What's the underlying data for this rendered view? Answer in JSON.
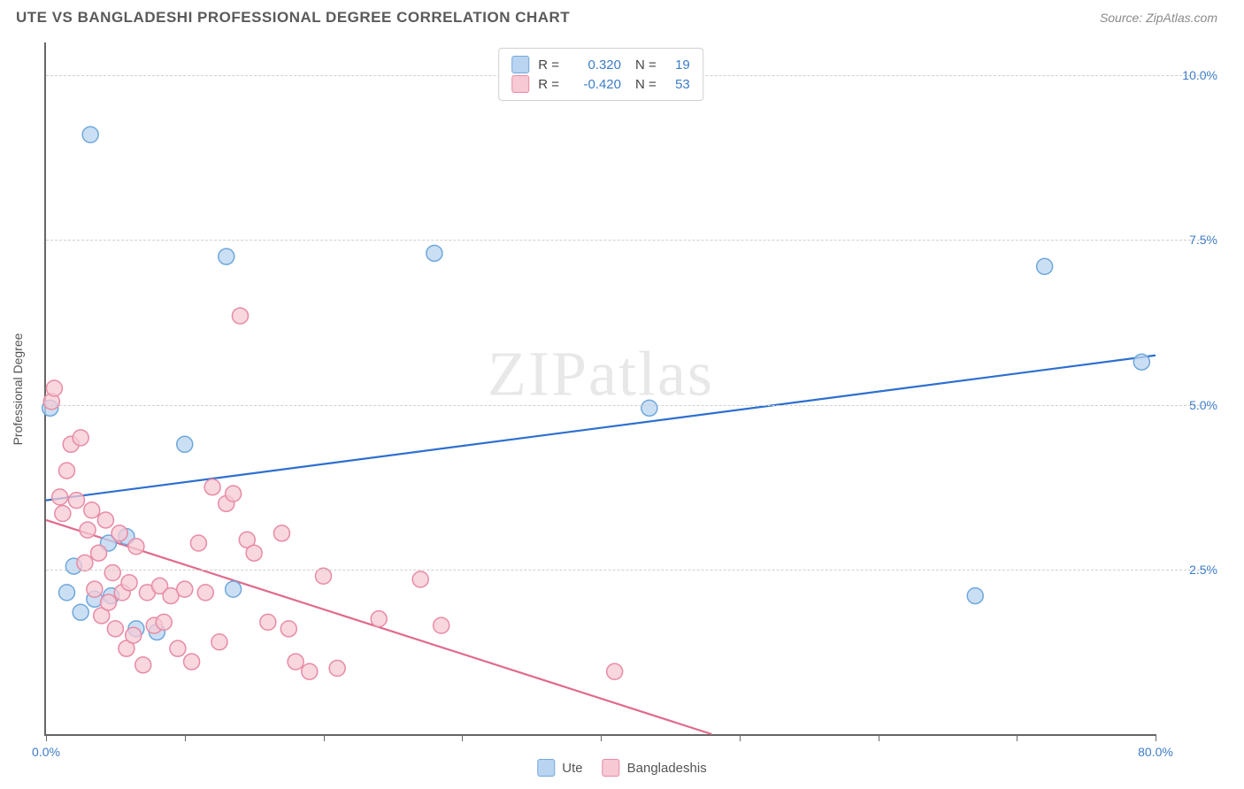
{
  "title": "UTE VS BANGLADESHI PROFESSIONAL DEGREE CORRELATION CHART",
  "source": "Source: ZipAtlas.com",
  "ylabel": "Professional Degree",
  "watermark_a": "ZIP",
  "watermark_b": "atlas",
  "chart": {
    "type": "scatter",
    "xlim": [
      0,
      80
    ],
    "ylim": [
      0,
      10.5
    ],
    "x_ticks": [
      0,
      10,
      20,
      30,
      40,
      50,
      60,
      70,
      80
    ],
    "x_tick_labels_shown": {
      "0": "0.0%",
      "80": "80.0%"
    },
    "y_ticks": [
      2.5,
      5.0,
      7.5,
      10.0
    ],
    "y_tick_labels": [
      "2.5%",
      "5.0%",
      "7.5%",
      "10.0%"
    ],
    "grid_color": "#d0d0d0",
    "background_color": "#ffffff",
    "marker_radius": 9,
    "marker_stroke_width": 1.5,
    "line_width": 2.2,
    "series": [
      {
        "name": "Ute",
        "color_fill": "#b9d4f0",
        "color_stroke": "#6fa8dc",
        "line_color": "#2d6fcf",
        "R": "0.320",
        "N": "19",
        "points": [
          [
            0.3,
            4.95
          ],
          [
            1.5,
            2.15
          ],
          [
            2.0,
            2.55
          ],
          [
            2.5,
            1.85
          ],
          [
            3.2,
            9.1
          ],
          [
            3.5,
            2.05
          ],
          [
            4.5,
            2.9
          ],
          [
            4.7,
            2.1
          ],
          [
            5.8,
            3.0
          ],
          [
            6.5,
            1.6
          ],
          [
            8.0,
            1.55
          ],
          [
            10.0,
            4.4
          ],
          [
            13.0,
            7.25
          ],
          [
            13.5,
            2.2
          ],
          [
            28.0,
            7.3
          ],
          [
            43.5,
            4.95
          ],
          [
            67.0,
            2.1
          ],
          [
            72.0,
            7.1
          ],
          [
            79.0,
            5.65
          ]
        ],
        "trend": {
          "x1": 0,
          "y1": 3.55,
          "x2": 80,
          "y2": 5.75
        }
      },
      {
        "name": "Bangladeshis",
        "color_fill": "#f6c9d4",
        "color_stroke": "#e88ba5",
        "line_color": "#e06a8c",
        "R": "-0.420",
        "N": "53",
        "points": [
          [
            0.4,
            5.05
          ],
          [
            0.6,
            5.25
          ],
          [
            1.0,
            3.6
          ],
          [
            1.2,
            3.35
          ],
          [
            1.5,
            4.0
          ],
          [
            1.8,
            4.4
          ],
          [
            2.2,
            3.55
          ],
          [
            2.5,
            4.5
          ],
          [
            2.8,
            2.6
          ],
          [
            3.0,
            3.1
          ],
          [
            3.3,
            3.4
          ],
          [
            3.5,
            2.2
          ],
          [
            3.8,
            2.75
          ],
          [
            4.0,
            1.8
          ],
          [
            4.3,
            3.25
          ],
          [
            4.5,
            2.0
          ],
          [
            4.8,
            2.45
          ],
          [
            5.0,
            1.6
          ],
          [
            5.3,
            3.05
          ],
          [
            5.5,
            2.15
          ],
          [
            5.8,
            1.3
          ],
          [
            6.0,
            2.3
          ],
          [
            6.3,
            1.5
          ],
          [
            6.5,
            2.85
          ],
          [
            7.0,
            1.05
          ],
          [
            7.3,
            2.15
          ],
          [
            7.8,
            1.65
          ],
          [
            8.2,
            2.25
          ],
          [
            8.5,
            1.7
          ],
          [
            9.0,
            2.1
          ],
          [
            9.5,
            1.3
          ],
          [
            10.0,
            2.2
          ],
          [
            10.5,
            1.1
          ],
          [
            11.0,
            2.9
          ],
          [
            11.5,
            2.15
          ],
          [
            12.0,
            3.75
          ],
          [
            12.5,
            1.4
          ],
          [
            13.0,
            3.5
          ],
          [
            13.5,
            3.65
          ],
          [
            14.0,
            6.35
          ],
          [
            14.5,
            2.95
          ],
          [
            15.0,
            2.75
          ],
          [
            16.0,
            1.7
          ],
          [
            17.0,
            3.05
          ],
          [
            17.5,
            1.6
          ],
          [
            18.0,
            1.1
          ],
          [
            19.0,
            0.95
          ],
          [
            20.0,
            2.4
          ],
          [
            21.0,
            1.0
          ],
          [
            24.0,
            1.75
          ],
          [
            27.0,
            2.35
          ],
          [
            28.5,
            1.65
          ],
          [
            41.0,
            0.95
          ]
        ],
        "trend": {
          "x1": 0,
          "y1": 3.25,
          "x2": 48,
          "y2": 0
        }
      }
    ]
  },
  "legend_bottom": [
    {
      "swatch": "blue",
      "label": "Ute"
    },
    {
      "swatch": "pink",
      "label": "Bangladeshis"
    }
  ]
}
